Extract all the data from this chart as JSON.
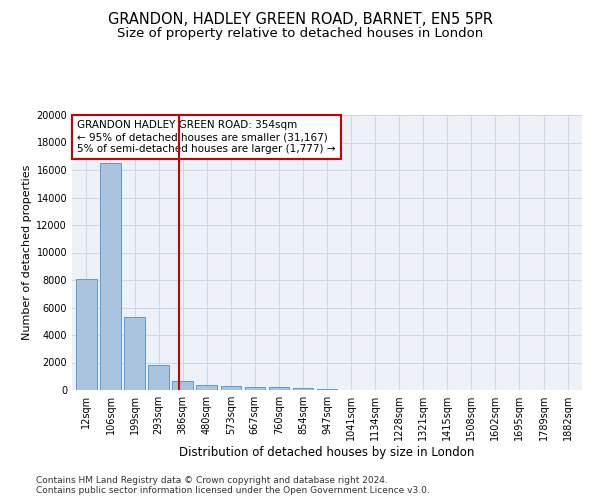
{
  "title": "GRANDON, HADLEY GREEN ROAD, BARNET, EN5 5PR",
  "subtitle": "Size of property relative to detached houses in London",
  "xlabel": "Distribution of detached houses by size in London",
  "ylabel": "Number of detached properties",
  "categories": [
    "12sqm",
    "106sqm",
    "199sqm",
    "293sqm",
    "386sqm",
    "480sqm",
    "573sqm",
    "667sqm",
    "760sqm",
    "854sqm",
    "947sqm",
    "1041sqm",
    "1134sqm",
    "1228sqm",
    "1321sqm",
    "1415sqm",
    "1508sqm",
    "1602sqm",
    "1695sqm",
    "1789sqm",
    "1882sqm"
  ],
  "values": [
    8100,
    16500,
    5300,
    1850,
    680,
    360,
    280,
    230,
    200,
    130,
    60,
    0,
    0,
    0,
    0,
    0,
    0,
    0,
    0,
    0,
    0
  ],
  "bar_color": "#aac4e0",
  "bar_edge_color": "#5b9bd5",
  "vline_x": 3.85,
  "vline_color": "#cc0000",
  "annotation_text": "GRANDON HADLEY GREEN ROAD: 354sqm\n← 95% of detached houses are smaller (31,167)\n5% of semi-detached houses are larger (1,777) →",
  "annotation_box_color": "#ffffff",
  "annotation_box_edge_color": "#cc0000",
  "ylim": [
    0,
    20000
  ],
  "yticks": [
    0,
    2000,
    4000,
    6000,
    8000,
    10000,
    12000,
    14000,
    16000,
    18000,
    20000
  ],
  "grid_color": "#d0d8e8",
  "bg_color": "#eef2f8",
  "footer": "Contains HM Land Registry data © Crown copyright and database right 2024.\nContains public sector information licensed under the Open Government Licence v3.0.",
  "title_fontsize": 10.5,
  "subtitle_fontsize": 9.5,
  "xlabel_fontsize": 8.5,
  "ylabel_fontsize": 8,
  "tick_fontsize": 7,
  "annotation_fontsize": 7.5,
  "footer_fontsize": 6.5
}
